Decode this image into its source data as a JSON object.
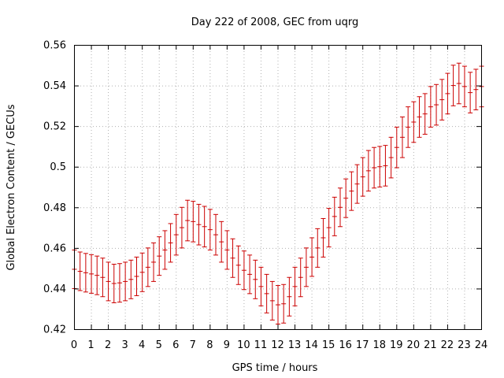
{
  "chart_data": {
    "type": "line",
    "style": "errorbars",
    "title": "Day 222 of 2008, GEC from uqrg",
    "xlabel": "GPS time / hours",
    "ylabel": "Global Electron Content / GECUs",
    "xlim": [
      0,
      24
    ],
    "ylim": [
      0.42,
      0.56
    ],
    "xticks": [
      0,
      1,
      2,
      3,
      4,
      5,
      6,
      7,
      8,
      9,
      10,
      11,
      12,
      13,
      14,
      15,
      16,
      17,
      18,
      19,
      20,
      21,
      22,
      23,
      24
    ],
    "xtick_labels": [
      "0",
      "1",
      "2",
      "3",
      "4",
      "5",
      "6",
      "7",
      "8",
      "9",
      "10",
      "11",
      "12",
      "13",
      "14",
      "15",
      "16",
      "17",
      "18",
      "19",
      "20",
      "21",
      "22",
      "23",
      "24"
    ],
    "yticks": [
      0.42,
      0.44,
      0.46,
      0.48,
      0.5,
      0.52,
      0.54,
      0.56
    ],
    "ytick_labels": [
      "0.42",
      "0.44",
      "0.46",
      "0.48",
      "0.5",
      "0.52",
      "0.54",
      "0.56"
    ],
    "grid": true,
    "series": [
      {
        "name": "GEC",
        "color": "#cc0000",
        "x": [
          0,
          0.333,
          0.667,
          1,
          1.333,
          1.667,
          2,
          2.333,
          2.667,
          3,
          3.333,
          3.667,
          4,
          4.333,
          4.667,
          5,
          5.333,
          5.667,
          6,
          6.333,
          6.667,
          7,
          7.333,
          7.667,
          8,
          8.333,
          8.667,
          9,
          9.333,
          9.667,
          10,
          10.333,
          10.667,
          11,
          11.333,
          11.667,
          12,
          12.333,
          12.667,
          13,
          13.333,
          13.667,
          14,
          14.333,
          14.667,
          15,
          15.333,
          15.667,
          16,
          16.333,
          16.667,
          17,
          17.333,
          17.667,
          18,
          18.333,
          18.667,
          19,
          19.333,
          19.667,
          20,
          20.333,
          20.667,
          21,
          21.333,
          21.667,
          22,
          22.333,
          22.667,
          23,
          23.333,
          23.667,
          24
        ],
        "y": [
          0.4495,
          0.4485,
          0.4478,
          0.4472,
          0.4465,
          0.4455,
          0.4435,
          0.4425,
          0.4428,
          0.4435,
          0.4445,
          0.446,
          0.448,
          0.4505,
          0.453,
          0.456,
          0.459,
          0.4625,
          0.4665,
          0.47,
          0.4735,
          0.473,
          0.4715,
          0.4705,
          0.469,
          0.4665,
          0.463,
          0.459,
          0.455,
          0.4515,
          0.449,
          0.447,
          0.4445,
          0.441,
          0.4375,
          0.434,
          0.432,
          0.4325,
          0.436,
          0.441,
          0.4455,
          0.4505,
          0.4555,
          0.46,
          0.465,
          0.47,
          0.4755,
          0.48,
          0.4845,
          0.488,
          0.4915,
          0.495,
          0.498,
          0.4995,
          0.5,
          0.5005,
          0.5045,
          0.5095,
          0.5145,
          0.5195,
          0.522,
          0.5245,
          0.526,
          0.5295,
          0.5305,
          0.533,
          0.536,
          0.54,
          0.541,
          0.5395,
          0.5365,
          0.538,
          0.5395
        ],
        "err": [
          0.0095,
          0.0095,
          0.0095,
          0.0095,
          0.0095,
          0.0095,
          0.0095,
          0.0095,
          0.0095,
          0.0095,
          0.0095,
          0.0095,
          0.0095,
          0.0095,
          0.0095,
          0.0095,
          0.0095,
          0.0095,
          0.01,
          0.01,
          0.01,
          0.01,
          0.01,
          0.01,
          0.01,
          0.01,
          0.01,
          0.0095,
          0.0095,
          0.0095,
          0.0095,
          0.0095,
          0.0095,
          0.0095,
          0.0095,
          0.0095,
          0.0095,
          0.0095,
          0.0095,
          0.0095,
          0.0095,
          0.0095,
          0.0095,
          0.0095,
          0.0095,
          0.0095,
          0.0095,
          0.0095,
          0.0095,
          0.0095,
          0.0095,
          0.0095,
          0.01,
          0.01,
          0.01,
          0.01,
          0.01,
          0.01,
          0.01,
          0.01,
          0.01,
          0.01,
          0.01,
          0.01,
          0.01,
          0.01,
          0.01,
          0.01,
          0.01,
          0.01,
          0.01,
          0.01,
          0.01
        ]
      }
    ]
  }
}
